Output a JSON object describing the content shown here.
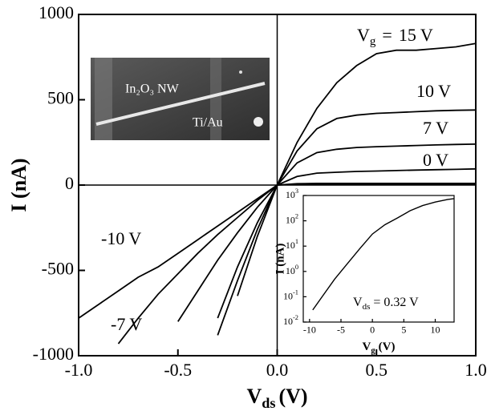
{
  "chart_data": [
    {
      "type": "line",
      "ylabel": "I (nA)",
      "xlabel": "V",
      "xlabel_sub": "ds",
      "xlabel_unit": "(V)",
      "label_prefix": "V",
      "label_prefix_sub": "g",
      "label_prefix_eq": "=",
      "x": [
        -1.0,
        -0.9,
        -0.8,
        -0.7,
        -0.6,
        -0.5,
        -0.4,
        -0.3,
        -0.2,
        -0.1,
        0.0,
        0.1,
        0.2,
        0.3,
        0.4,
        0.5,
        0.6,
        0.7,
        0.8,
        0.9,
        1.0
      ],
      "series": [
        {
          "name": "15 V",
          "color": "#000000",
          "values": [
            null,
            null,
            null,
            null,
            null,
            null,
            null,
            null,
            -650,
            -300,
            0,
            250,
            450,
            600,
            700,
            770,
            790,
            790,
            800,
            810,
            830
          ]
        },
        {
          "name": "10 V",
          "color": "#000000",
          "values": [
            null,
            null,
            null,
            null,
            null,
            null,
            null,
            -880,
            -560,
            -260,
            0,
            200,
            330,
            390,
            410,
            420,
            425,
            430,
            435,
            438,
            440
          ]
        },
        {
          "name": "7 V",
          "color": "#000000",
          "values": [
            null,
            null,
            null,
            null,
            null,
            null,
            null,
            -780,
            -480,
            -220,
            0,
            130,
            190,
            210,
            220,
            225,
            228,
            232,
            235,
            238,
            240
          ]
        },
        {
          "name": "0 V",
          "color": "#000000",
          "values": [
            null,
            null,
            null,
            null,
            null,
            -800,
            -620,
            -440,
            -280,
            -130,
            0,
            50,
            70,
            75,
            80,
            82,
            85,
            88,
            90,
            92,
            95
          ]
        },
        {
          "name": "-7 V",
          "color": "#000000",
          "values": [
            null,
            null,
            -930,
            -780,
            -640,
            -520,
            -400,
            -290,
            -190,
            -90,
            0,
            8,
            10,
            10,
            10,
            10,
            10,
            10,
            10,
            10,
            10
          ]
        },
        {
          "name": "-10 V",
          "color": "#000000",
          "values": [
            -780,
            -700,
            -620,
            -540,
            -480,
            -400,
            -320,
            -240,
            -160,
            -80,
            0,
            5,
            6,
            6,
            6,
            6,
            6,
            6,
            6,
            6,
            6
          ]
        }
      ],
      "xlim": [
        -1.0,
        1.0
      ],
      "xticks": [
        {
          "value": -1.0,
          "label": "-1.0"
        },
        -0.5,
        {
          "value": 0.0,
          "label": "0.0"
        },
        0.5,
        {
          "value": 1.0,
          "label": "1.0"
        }
      ],
      "ylim": [
        -1000,
        1000
      ],
      "yticks": [
        1000,
        500,
        0,
        -500,
        -1000
      ]
    },
    {
      "type": "line",
      "log_y": true,
      "ylabel": "I (nA)",
      "xlabel": "V",
      "xlabel_sub": "g",
      "xlabel_unit": "(V)",
      "annotation": "V",
      "annotation_sub": "ds",
      "annotation_rest": "= 0.32 V",
      "x": [
        -9.5,
        -8,
        -6,
        -4,
        -2,
        0,
        2,
        4,
        6,
        8,
        10,
        12,
        13
      ],
      "series": [
        {
          "name": null,
          "color": "#000000",
          "values": [
            0.03,
            0.1,
            0.5,
            2,
            8,
            30,
            70,
            130,
            250,
            400,
            550,
            700,
            750
          ]
        }
      ],
      "xlim": [
        -11,
        13
      ],
      "xticks": [
        -10,
        -5,
        0,
        5,
        10
      ],
      "ylim": [
        0.01,
        1000
      ],
      "yticks": [
        {
          "value": 0.01,
          "label": "10",
          "exp": "-2"
        },
        {
          "value": 0.1,
          "label": "10",
          "exp": "-1"
        },
        {
          "value": 1,
          "label": "10",
          "exp": "0"
        },
        {
          "value": 10,
          "label": "10",
          "exp": "1"
        },
        {
          "value": 100,
          "label": "10",
          "exp": "2"
        },
        {
          "value": 1000,
          "label": "10",
          "exp": "3"
        }
      ]
    }
  ],
  "photo_labels": {
    "wire": "In₂O₃ NW",
    "contact": "Ti/Au"
  }
}
